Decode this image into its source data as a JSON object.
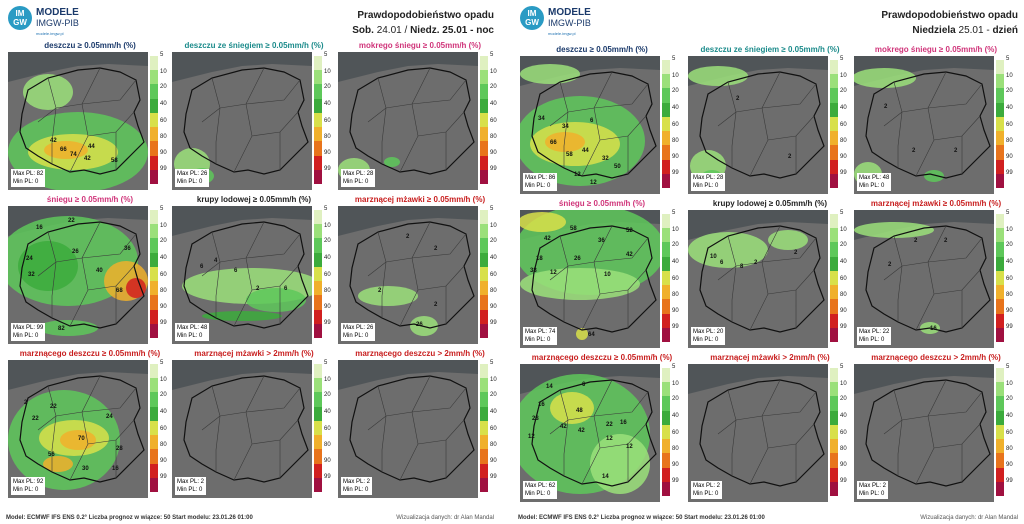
{
  "scale_labels": [
    "5",
    "10",
    "20",
    "40",
    "60",
    "80",
    "90",
    "99"
  ],
  "scale_colors": [
    "#dff0c0",
    "#9be07a",
    "#5ec85a",
    "#3cab3c",
    "#d8e04a",
    "#f0b02c",
    "#e8741c",
    "#d12020",
    "#a01040"
  ],
  "panels": [
    {
      "brand": {
        "title": "MODELE",
        "subtitle": "IMGW-PIB",
        "url": "modele.imgw.pl",
        "logo": "IM GW"
      },
      "header": {
        "line1": "Prawdopodobieństwo opadu",
        "line2a": "Sob.",
        "line2b": "24.01 /",
        "line2c": "Niedz.",
        "line2d": "25.01 - noc"
      },
      "cells": [
        {
          "title": "deszczu ≥ 0.05mm/h (%)",
          "color": "navy",
          "max": "Max PL: 82",
          "min": "Min PL: 0",
          "nums": [
            {
              "v": "42",
              "x": 42,
              "y": 86
            },
            {
              "v": "66",
              "x": 52,
              "y": 95
            },
            {
              "v": "74",
              "x": 62,
              "y": 100
            },
            {
              "v": "44",
              "x": 80,
              "y": 92
            },
            {
              "v": "42",
              "x": 76,
              "y": 104
            },
            {
              "v": "58",
              "x": 103,
              "y": 106
            }
          ]
        },
        {
          "title": "deszczu ze śniegiem ≥ 0.05mm/h (%)",
          "color": "teal",
          "max": "Max PL: 26",
          "min": "Min PL: 0",
          "nums": []
        },
        {
          "title": "mokrego śniegu ≥ 0.05mm/h (%)",
          "color": "pink",
          "max": "Max PL: 28",
          "min": "Min PL: 0",
          "nums": []
        },
        {
          "title": "śniegu ≥ 0.05mm/h (%)",
          "color": "pink",
          "max": "Max PL: 99",
          "min": "Min PL: 0",
          "nums": [
            {
              "v": "16",
              "x": 28,
              "y": 19
            },
            {
              "v": "22",
              "x": 60,
              "y": 12
            },
            {
              "v": "24",
              "x": 18,
              "y": 50
            },
            {
              "v": "32",
              "x": 20,
              "y": 66
            },
            {
              "v": "26",
              "x": 64,
              "y": 43
            },
            {
              "v": "40",
              "x": 88,
              "y": 62
            },
            {
              "v": "36",
              "x": 116,
              "y": 40
            },
            {
              "v": "68",
              "x": 108,
              "y": 82
            },
            {
              "v": "82",
              "x": 50,
              "y": 120
            }
          ]
        },
        {
          "title": "krupy lodowej ≥ 0.05mm/h (%)",
          "color": "dark",
          "max": "Max PL: 48",
          "min": "Min PL: 0",
          "nums": [
            {
              "v": "6",
              "x": 28,
              "y": 58
            },
            {
              "v": "4",
              "x": 42,
              "y": 52
            },
            {
              "v": "6",
              "x": 62,
              "y": 62
            },
            {
              "v": "2",
              "x": 84,
              "y": 80
            },
            {
              "v": "6",
              "x": 112,
              "y": 80
            }
          ]
        },
        {
          "title": "marznącej mżawki ≥ 0.05mm/h (%)",
          "color": "red",
          "max": "Max PL: 26",
          "min": "Min PL: 0",
          "nums": [
            {
              "v": "2",
              "x": 68,
              "y": 28
            },
            {
              "v": "2",
              "x": 96,
              "y": 40
            },
            {
              "v": "2",
              "x": 40,
              "y": 82
            },
            {
              "v": "2",
              "x": 96,
              "y": 96
            },
            {
              "v": "26",
              "x": 78,
              "y": 116
            }
          ]
        },
        {
          "title": "marznącego deszczu ≥ 0.05mm/h (%)",
          "color": "red",
          "max": "Max PL: 92",
          "min": "Min PL: 0",
          "nums": [
            {
              "v": "2",
              "x": 16,
              "y": 40
            },
            {
              "v": "22",
              "x": 24,
              "y": 56
            },
            {
              "v": "22",
              "x": 42,
              "y": 44
            },
            {
              "v": "24",
              "x": 98,
              "y": 54
            },
            {
              "v": "70",
              "x": 70,
              "y": 76
            },
            {
              "v": "28",
              "x": 108,
              "y": 86
            },
            {
              "v": "56",
              "x": 40,
              "y": 92
            },
            {
              "v": "30",
              "x": 74,
              "y": 106
            },
            {
              "v": "16",
              "x": 104,
              "y": 106
            }
          ]
        },
        {
          "title": "marznącej mżawki > 2mm/h (%)",
          "color": "red",
          "max": "Max PL: 2",
          "min": "Min PL: 0",
          "nums": []
        },
        {
          "title": "marznącego deszczu > 2mm/h (%)",
          "color": "red",
          "max": "Max PL: 2",
          "min": "Min PL: 0",
          "nums": []
        }
      ],
      "footer_left": "Model: ECMWF IFS ENS 0.2°    Liczba prognoz w wiązce: 50    Start modelu: 23.01.26  01:00",
      "footer_right": "Wizualizacja danych: dr Alan Mandal"
    },
    {
      "brand": {
        "title": "MODELE",
        "subtitle": "IMGW-PIB",
        "url": "modele.imgw.pl",
        "logo": "IM GW"
      },
      "header": {
        "line1": "Prawdopodobieństwo opadu",
        "line2a": "Niedziela",
        "line2b": "25.01 -",
        "line2c": "",
        "line2d": "dzień"
      },
      "cells": [
        {
          "title": "deszczu ≥ 0.05mm/h (%)",
          "color": "navy",
          "max": "Max PL: 86",
          "min": "Min PL: 0",
          "nums": [
            {
              "v": "34",
              "x": 18,
              "y": 60
            },
            {
              "v": "34",
              "x": 42,
              "y": 68
            },
            {
              "v": "6",
              "x": 70,
              "y": 62
            },
            {
              "v": "66",
              "x": 30,
              "y": 84
            },
            {
              "v": "58",
              "x": 46,
              "y": 96
            },
            {
              "v": "44",
              "x": 62,
              "y": 92
            },
            {
              "v": "32",
              "x": 82,
              "y": 100
            },
            {
              "v": "12",
              "x": 54,
              "y": 116
            },
            {
              "v": "50",
              "x": 94,
              "y": 108
            },
            {
              "v": "12",
              "x": 70,
              "y": 124
            }
          ]
        },
        {
          "title": "deszczu ze śniegiem ≥ 0.05mm/h (%)",
          "color": "teal",
          "max": "Max PL: 28",
          "min": "Min PL: 0",
          "nums": [
            {
              "v": "2",
              "x": 48,
              "y": 40
            },
            {
              "v": "2",
              "x": 100,
              "y": 98
            }
          ]
        },
        {
          "title": "mokrego śniegu ≥ 0.05mm/h (%)",
          "color": "pink",
          "max": "Max PL: 48",
          "min": "Min PL: 0",
          "nums": [
            {
              "v": "2",
              "x": 30,
              "y": 48
            },
            {
              "v": "2",
              "x": 58,
              "y": 92
            },
            {
              "v": "2",
              "x": 100,
              "y": 92
            }
          ]
        },
        {
          "title": "śniegu ≥ 0.05mm/h (%)",
          "color": "pink",
          "max": "Max PL: 74",
          "min": "Min PL: 0",
          "nums": [
            {
              "v": "58",
              "x": 50,
              "y": 16
            },
            {
              "v": "52",
              "x": 106,
              "y": 18
            },
            {
              "v": "42",
              "x": 24,
              "y": 26
            },
            {
              "v": "36",
              "x": 78,
              "y": 28
            },
            {
              "v": "18",
              "x": 16,
              "y": 46
            },
            {
              "v": "26",
              "x": 54,
              "y": 46
            },
            {
              "v": "42",
              "x": 106,
              "y": 42
            },
            {
              "v": "38",
              "x": 10,
              "y": 58
            },
            {
              "v": "12",
              "x": 30,
              "y": 60
            },
            {
              "v": "10",
              "x": 84,
              "y": 62
            },
            {
              "v": "64",
              "x": 68,
              "y": 122
            }
          ]
        },
        {
          "title": "krupy lodowej ≥ 0.05mm/h (%)",
          "color": "dark",
          "max": "Max PL: 20",
          "min": "Min PL: 0",
          "nums": [
            {
              "v": "10",
              "x": 22,
              "y": 44
            },
            {
              "v": "6",
              "x": 32,
              "y": 50
            },
            {
              "v": "8",
              "x": 52,
              "y": 54
            },
            {
              "v": "2",
              "x": 66,
              "y": 50
            },
            {
              "v": "2",
              "x": 106,
              "y": 40
            }
          ]
        },
        {
          "title": "marznącej mżawki ≥ 0.05mm/h (%)",
          "color": "red",
          "max": "Max PL: 22",
          "min": "Min PL: 0",
          "nums": [
            {
              "v": "2",
              "x": 60,
              "y": 28
            },
            {
              "v": "2",
              "x": 90,
              "y": 28
            },
            {
              "v": "2",
              "x": 34,
              "y": 52
            },
            {
              "v": "16",
              "x": 76,
              "y": 116
            }
          ]
        },
        {
          "title": "marznącego deszczu ≥ 0.05mm/h (%)",
          "color": "red",
          "max": "Max PL: 62",
          "min": "Min PL: 0",
          "nums": [
            {
              "v": "14",
              "x": 26,
              "y": 20
            },
            {
              "v": "6",
              "x": 62,
              "y": 18
            },
            {
              "v": "16",
              "x": 18,
              "y": 38
            },
            {
              "v": "48",
              "x": 56,
              "y": 44
            },
            {
              "v": "28",
              "x": 12,
              "y": 52
            },
            {
              "v": "42",
              "x": 40,
              "y": 60
            },
            {
              "v": "42",
              "x": 58,
              "y": 64
            },
            {
              "v": "22",
              "x": 86,
              "y": 58
            },
            {
              "v": "12",
              "x": 8,
              "y": 70
            },
            {
              "v": "16",
              "x": 100,
              "y": 56
            },
            {
              "v": "12",
              "x": 86,
              "y": 72
            },
            {
              "v": "12",
              "x": 106,
              "y": 80
            },
            {
              "v": "14",
              "x": 82,
              "y": 110
            }
          ]
        },
        {
          "title": "marznącej mżawki > 2mm/h (%)",
          "color": "red",
          "max": "Max PL: 2",
          "min": "Min PL: 0",
          "nums": []
        },
        {
          "title": "marznącego deszczu > 2mm/h (%)",
          "color": "red",
          "max": "Max PL: 2",
          "min": "Min PL: 0",
          "nums": []
        }
      ],
      "footer_left": "Model: ECMWF IFS ENS 0.2°    Liczba prognoz w wiązce: 50    Start modelu: 23.01.26  01:00",
      "footer_right": "Wizualizacja danych: dr Alan Mandal"
    }
  ]
}
